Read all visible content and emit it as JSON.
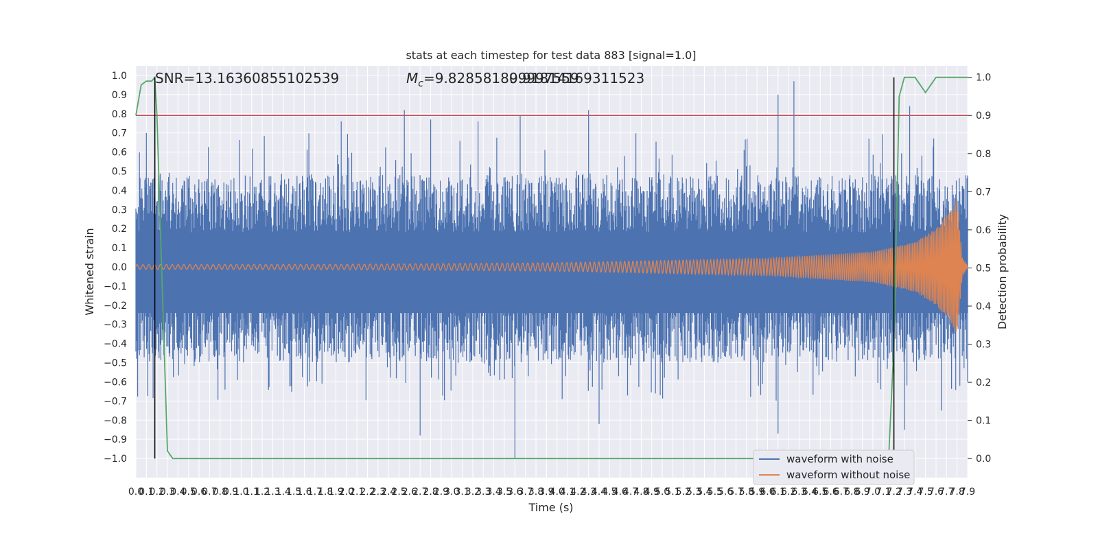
{
  "chart_data": {
    "type": "line",
    "title": "stats at each timestep for test data 883 [signal=1.0]",
    "xlabel": "Time (s)",
    "ylabel_left": "Whitened strain",
    "ylabel_right": "Detection probability",
    "xlim": [
      0.0,
      7.9
    ],
    "ylim_left": [
      -1.1,
      1.05
    ],
    "ylim_right": [
      -0.05,
      1.03
    ],
    "x_ticks": [
      "0.0",
      "0.1",
      "0.2",
      "0.3",
      "0.4",
      "0.5",
      "0.6",
      "0.7",
      "0.8",
      "0.9",
      "1.0",
      "1.1",
      "1.2",
      "1.3",
      "1.4",
      "1.5",
      "1.6",
      "1.7",
      "1.8",
      "1.9",
      "2.0",
      "2.1",
      "2.2",
      "2.3",
      "2.4",
      "2.5",
      "2.6",
      "2.7",
      "2.8",
      "2.9",
      "3.0",
      "3.1",
      "3.2",
      "3.3",
      "3.4",
      "3.5",
      "3.6",
      "3.7",
      "3.8",
      "3.9",
      "4.0",
      "4.1",
      "4.2",
      "4.3",
      "4.4",
      "4.5",
      "4.6",
      "4.7",
      "4.8",
      "4.9",
      "5.0",
      "5.1",
      "5.2",
      "5.3",
      "5.4",
      "5.5",
      "5.6",
      "5.7",
      "5.8",
      "5.9",
      "6.0",
      "6.1",
      "6.2",
      "6.3",
      "6.4",
      "6.5",
      "6.6",
      "6.7",
      "6.8",
      "6.9",
      "7.0",
      "7.1",
      "7.2",
      "7.3",
      "7.4",
      "7.5",
      "7.6",
      "7.7",
      "7.8",
      "7.9"
    ],
    "y_ticks_left": [
      "1.0",
      "0.9",
      "0.8",
      "0.7",
      "0.6",
      "0.5",
      "0.4",
      "0.3",
      "0.2",
      "0.1",
      "0.0",
      "−0.1",
      "−0.2",
      "−0.3",
      "−0.4",
      "−0.5",
      "−0.6",
      "−0.7",
      "−0.8",
      "−0.9",
      "−1.0"
    ],
    "y_ticks_right": [
      "1.0",
      "0.9",
      "0.8",
      "0.7",
      "0.6",
      "0.5",
      "0.4",
      "0.3",
      "0.2",
      "0.1",
      "0.0"
    ],
    "grid": true,
    "legend_position": "bottom-right",
    "annotations": {
      "snr": "SNR=13.16360855102539",
      "mc_prefix": "M",
      "mc_sub": "c",
      "mc_value": "=9.828581809997559",
      "mc_overlap": "9.91814169311523"
    },
    "series": [
      {
        "name": "waveform with noise",
        "color": "#4c72b0",
        "axis": "left",
        "description_envelope": "noise band roughly between -0.5 and +0.45 with spikes up to 0.96 and down to -1.0",
        "spikes": [
          [
            0.18,
            0.78
          ],
          [
            0.1,
            0.7
          ],
          [
            1.95,
            0.76
          ],
          [
            2.55,
            0.82
          ],
          [
            2.8,
            0.77
          ],
          [
            3.25,
            0.76
          ],
          [
            3.65,
            0.79
          ],
          [
            4.3,
            0.82
          ],
          [
            6.25,
            0.97
          ],
          [
            6.1,
            0.9
          ],
          [
            7.35,
            0.84
          ],
          [
            2.7,
            -0.88
          ],
          [
            3.6,
            -1.0
          ],
          [
            4.4,
            -0.82
          ],
          [
            6.1,
            -0.87
          ],
          [
            7.3,
            -0.85
          ],
          [
            7.65,
            -0.75
          ]
        ]
      },
      {
        "name": "waveform without noise",
        "color": "#dd8452",
        "axis": "left",
        "description": "chirp signal: small amplitude ~0.01 early, growing to ~0.36 at t≈7.8 s then ringing down",
        "amplitude_points": [
          [
            0.0,
            0.012
          ],
          [
            2.0,
            0.014
          ],
          [
            4.0,
            0.022
          ],
          [
            6.0,
            0.045
          ],
          [
            7.0,
            0.08
          ],
          [
            7.4,
            0.13
          ],
          [
            7.6,
            0.2
          ],
          [
            7.75,
            0.3
          ],
          [
            7.8,
            0.36
          ],
          [
            7.85,
            0.05
          ],
          [
            7.9,
            0.005
          ]
        ]
      },
      {
        "name": "detection probability",
        "color": "#55a868",
        "axis": "right",
        "x": [
          0.0,
          0.05,
          0.1,
          0.15,
          0.18,
          0.2,
          0.25,
          0.3,
          0.35,
          0.4,
          6.5,
          7.0,
          7.1,
          7.15,
          7.2,
          7.25,
          7.3,
          7.35,
          7.4,
          7.45,
          7.5,
          7.55,
          7.6,
          7.9
        ],
        "values": [
          0.9,
          0.98,
          0.99,
          0.99,
          1.0,
          0.9,
          0.45,
          0.02,
          0.0,
          0.0,
          0.0,
          0.0,
          0.0,
          0.0,
          0.3,
          0.95,
          1.0,
          1.0,
          1.0,
          0.98,
          0.96,
          0.98,
          1.0,
          1.0
        ]
      }
    ],
    "reference_lines": {
      "threshold_right": 0.9,
      "threshold_color": "#c44e52",
      "vertical_lines_x": [
        0.18,
        7.2
      ],
      "vertical_color": "#000000"
    }
  }
}
